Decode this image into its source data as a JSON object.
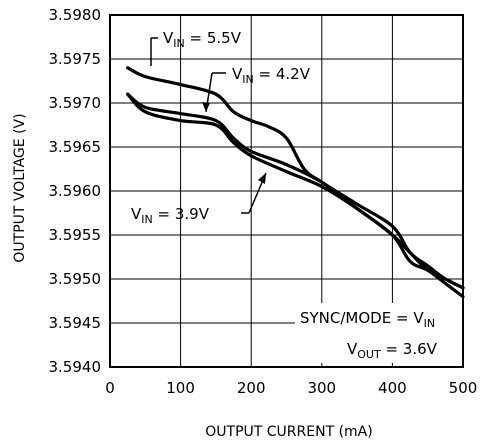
{
  "chart_data": {
    "type": "line",
    "xlabel": "OUTPUT CURRENT (mA)",
    "ylabel": "OUTPUT VOLTAGE (V)",
    "xlim": [
      0,
      500
    ],
    "ylim": [
      3.594,
      3.598
    ],
    "x_ticks": [
      "0",
      "100",
      "200",
      "300",
      "400",
      "500"
    ],
    "y_ticks": [
      "3.5940",
      "3.5945",
      "3.5950",
      "3.5955",
      "3.5960",
      "3.5965",
      "3.5970",
      "3.5975",
      "3.5980"
    ],
    "grid": true,
    "series": [
      {
        "label_main": "V",
        "label_sub": "IN",
        "label_value": " = 5.5V",
        "x": [
          25,
          50,
          100,
          150,
          175,
          200,
          225,
          250,
          275,
          300,
          350,
          400,
          425,
          450,
          475,
          500
        ],
        "y": [
          3.5974,
          3.5973,
          3.59721,
          3.5971,
          3.5969,
          3.5968,
          3.59673,
          3.5966,
          3.59625,
          3.5961,
          3.59585,
          3.5956,
          3.5953,
          3.59515,
          3.595,
          3.5949
        ]
      },
      {
        "label_main": "V",
        "label_sub": "IN",
        "label_value": " = 4.2V",
        "x": [
          25,
          50,
          100,
          150,
          175,
          200,
          250,
          300,
          350,
          400,
          425,
          450,
          475,
          500
        ],
        "y": [
          3.5971,
          3.59695,
          3.59688,
          3.5968,
          3.5966,
          3.59645,
          3.5963,
          3.5961,
          3.5958,
          3.5955,
          3.5952,
          3.5951,
          3.59495,
          3.5948
        ]
      },
      {
        "label_main": "V",
        "label_sub": "IN",
        "label_value": " = 3.9V",
        "x": [
          25,
          50,
          100,
          150,
          175,
          200,
          250,
          300,
          350,
          400,
          425,
          450,
          475,
          500
        ],
        "y": [
          3.5971,
          3.5969,
          3.5968,
          3.59675,
          3.59655,
          3.5964,
          3.59622,
          3.59605,
          3.5958,
          3.5955,
          3.5953,
          3.5951,
          3.595,
          3.5949
        ]
      }
    ],
    "annotation": {
      "line1_main": "SYNC/MODE = V",
      "line1_sub": "IN",
      "line2_main": "V",
      "line2_sub": "OUT",
      "line2_value": " = 3.6V"
    }
  }
}
